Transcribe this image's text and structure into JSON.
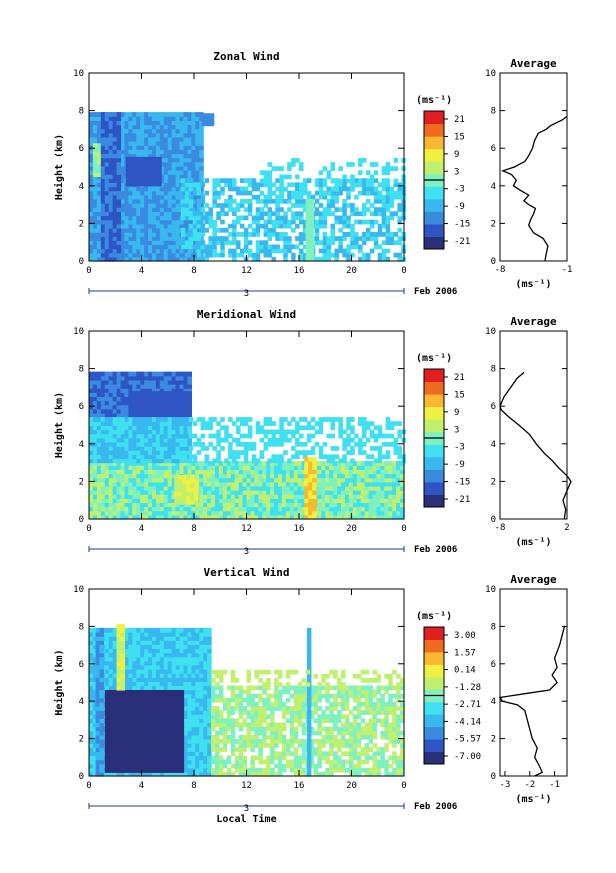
{
  "colorscale": [
    "#2a2f7a",
    "#2f55c4",
    "#3a8be0",
    "#39b8f0",
    "#3fe0f0",
    "#7ff0c0",
    "#c0f070",
    "#f0f040",
    "#f8b830",
    "#f06a20",
    "#e02020"
  ],
  "chart_data": [
    {
      "type": "heatmap",
      "title": "Zonal Wind",
      "ylabel": "Height (km)",
      "xlabel": "",
      "x_ticks": [
        "0",
        "4",
        "8",
        "12",
        "16",
        "20",
        "0"
      ],
      "x_range": [
        0,
        24
      ],
      "y_ticks": [
        "0",
        "2",
        "4",
        "6",
        "8",
        "10"
      ],
      "y_range": [
        0,
        10
      ],
      "date_label": "3",
      "month_label": "Feb 2006",
      "colorbar": {
        "unit": "(ms⁻¹)",
        "ticks": [
          "21",
          "15",
          "9",
          "3",
          "-3",
          "-9",
          "-15",
          "-21"
        ]
      },
      "average": {
        "title": "Average",
        "xlabel": "(ms⁻¹)",
        "x_ticks": [
          "-8",
          "-1"
        ],
        "x_range": [
          -8,
          -1
        ],
        "y_ticks": [
          "0",
          "2",
          "4",
          "6",
          "8",
          "10"
        ],
        "y_range": [
          0,
          10
        ],
        "profile": [
          [
            -3.3,
            0.0
          ],
          [
            -3.2,
            0.3
          ],
          [
            -3.0,
            0.8
          ],
          [
            -3.5,
            1.2
          ],
          [
            -4.5,
            1.5
          ],
          [
            -5.0,
            1.9
          ],
          [
            -4.8,
            2.2
          ],
          [
            -4.5,
            2.5
          ],
          [
            -4.3,
            2.8
          ],
          [
            -5.0,
            3.0
          ],
          [
            -5.5,
            3.2
          ],
          [
            -5.0,
            3.5
          ],
          [
            -6.0,
            3.8
          ],
          [
            -6.6,
            4.0
          ],
          [
            -6.3,
            4.3
          ],
          [
            -6.8,
            4.6
          ],
          [
            -7.7,
            4.8
          ],
          [
            -6.5,
            5.0
          ],
          [
            -5.4,
            5.3
          ],
          [
            -5.0,
            5.6
          ],
          [
            -4.6,
            6.0
          ],
          [
            -4.4,
            6.4
          ],
          [
            -4.0,
            6.8
          ],
          [
            -3.2,
            7.0
          ],
          [
            -2.7,
            7.2
          ],
          [
            -1.5,
            7.5
          ],
          [
            -1.0,
            7.7
          ]
        ]
      }
    },
    {
      "type": "heatmap",
      "title": "Meridional Wind",
      "ylabel": "Height (km)",
      "xlabel": "",
      "x_ticks": [
        "0",
        "4",
        "8",
        "12",
        "16",
        "20",
        "0"
      ],
      "x_range": [
        0,
        24
      ],
      "y_ticks": [
        "0",
        "2",
        "4",
        "6",
        "8",
        "10"
      ],
      "y_range": [
        0,
        10
      ],
      "date_label": "3",
      "month_label": "Feb 2006",
      "colorbar": {
        "unit": "(ms⁻¹)",
        "ticks": [
          "21",
          "15",
          "9",
          "3",
          "-3",
          "-9",
          "-15",
          "-21"
        ]
      },
      "average": {
        "title": "Average",
        "xlabel": "(ms⁻¹)",
        "x_ticks": [
          "-8",
          "2"
        ],
        "x_range": [
          -8,
          2
        ],
        "y_ticks": [
          "0",
          "2",
          "4",
          "6",
          "8",
          "10"
        ],
        "y_range": [
          0,
          10
        ],
        "profile": [
          [
            1.6,
            0.0
          ],
          [
            1.8,
            0.5
          ],
          [
            1.4,
            1.0
          ],
          [
            2.0,
            1.5
          ],
          [
            2.6,
            2.0
          ],
          [
            2.0,
            2.3
          ],
          [
            0.8,
            2.7
          ],
          [
            -0.2,
            3.1
          ],
          [
            -1.4,
            3.5
          ],
          [
            -2.6,
            4.0
          ],
          [
            -3.6,
            4.5
          ],
          [
            -5.2,
            5.0
          ],
          [
            -6.6,
            5.4
          ],
          [
            -7.8,
            5.8
          ],
          [
            -8.0,
            6.0
          ],
          [
            -7.4,
            6.5
          ],
          [
            -6.4,
            7.0
          ],
          [
            -5.4,
            7.5
          ],
          [
            -4.4,
            7.8
          ]
        ]
      }
    },
    {
      "type": "heatmap",
      "title": "Vertical Wind",
      "ylabel": "Height (km)",
      "xlabel": "Local Time",
      "x_ticks": [
        "0",
        "4",
        "8",
        "12",
        "16",
        "20",
        "0"
      ],
      "x_range": [
        0,
        24
      ],
      "y_ticks": [
        "0",
        "2",
        "4",
        "6",
        "8",
        "10"
      ],
      "y_range": [
        0,
        10
      ],
      "date_label": "3",
      "month_label": "Feb 2006",
      "colorbar": {
        "unit": "(ms⁻¹)",
        "ticks": [
          "3.00",
          "1.57",
          "0.14",
          "-1.28",
          "-2.71",
          "-4.14",
          "-5.57",
          "-7.00"
        ]
      },
      "average": {
        "title": "Average",
        "xlabel": "(ms⁻¹)",
        "x_ticks": [
          "-3",
          "-2",
          "-1"
        ],
        "x_range": [
          -3.2,
          -0.5
        ],
        "y_ticks": [
          "0",
          "2",
          "4",
          "6",
          "8",
          "10"
        ],
        "y_range": [
          0,
          10
        ],
        "profile": [
          [
            -1.8,
            0.0
          ],
          [
            -1.5,
            0.2
          ],
          [
            -1.6,
            0.5
          ],
          [
            -1.8,
            1.0
          ],
          [
            -1.7,
            1.5
          ],
          [
            -1.9,
            2.0
          ],
          [
            -2.0,
            2.5
          ],
          [
            -2.1,
            3.0
          ],
          [
            -2.2,
            3.5
          ],
          [
            -2.5,
            3.8
          ],
          [
            -3.1,
            4.0
          ],
          [
            -3.2,
            4.2
          ],
          [
            -2.2,
            4.4
          ],
          [
            -1.2,
            4.6
          ],
          [
            -0.9,
            5.0
          ],
          [
            -1.1,
            5.4
          ],
          [
            -0.9,
            5.8
          ],
          [
            -1.0,
            6.3
          ],
          [
            -0.8,
            7.0
          ],
          [
            -0.7,
            7.5
          ],
          [
            -0.6,
            8.0
          ]
        ]
      }
    }
  ]
}
